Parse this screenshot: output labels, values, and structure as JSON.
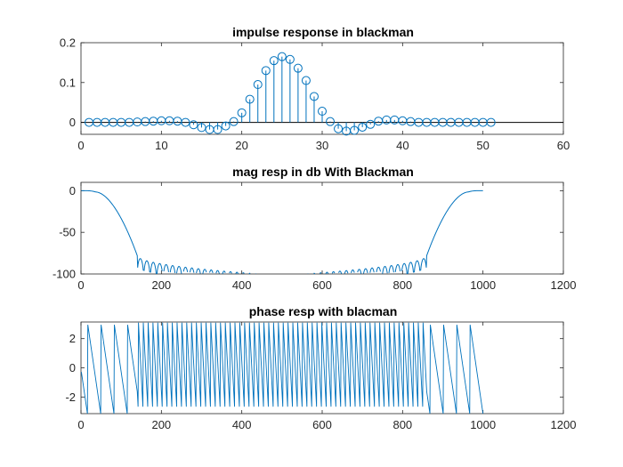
{
  "chart_data": [
    {
      "type": "stem",
      "title": "impulse response in blackman",
      "xlim": [
        0,
        60
      ],
      "ylim": [
        -0.03,
        0.2
      ],
      "xticks": [
        0,
        10,
        20,
        30,
        40,
        50,
        60
      ],
      "yticks": [
        0,
        0.1,
        0.2
      ],
      "xtick_labels": [
        "0",
        "10",
        "20",
        "30",
        "40",
        "50",
        "60"
      ],
      "ytick_labels": [
        "0",
        "0.1",
        "0.2"
      ],
      "baseline": 0,
      "x": [
        1,
        2,
        3,
        4,
        5,
        6,
        7,
        8,
        9,
        10,
        11,
        12,
        13,
        14,
        15,
        16,
        17,
        18,
        19,
        20,
        21,
        22,
        23,
        24,
        25,
        26,
        27,
        28,
        29,
        30,
        31,
        32,
        33,
        34,
        35,
        36,
        37,
        38,
        39,
        40,
        41,
        42,
        43,
        44,
        45,
        46,
        47,
        48,
        49,
        50,
        51
      ],
      "values": [
        0,
        0,
        0,
        0,
        0,
        0,
        0.001,
        0.002,
        0.003,
        0.004,
        0.004,
        0.003,
        0,
        -0.006,
        -0.013,
        -0.018,
        -0.018,
        -0.009,
        0.002,
        0.024,
        0.058,
        0.095,
        0.13,
        0.155,
        0.165,
        0.158,
        0.136,
        0.105,
        0.065,
        0.028,
        0.002,
        -0.016,
        -0.022,
        -0.02,
        -0.012,
        -0.005,
        0.003,
        0.006,
        0.006,
        0.004,
        0.002,
        0,
        0,
        0,
        0,
        0,
        0,
        0,
        0,
        0,
        0
      ],
      "color": "#0072BD"
    },
    {
      "type": "line",
      "title": "mag resp in db With Blackman",
      "xlim": [
        0,
        1200
      ],
      "ylim": [
        -100,
        10
      ],
      "xticks": [
        0,
        200,
        400,
        600,
        800,
        1000,
        1200
      ],
      "yticks": [
        -100,
        -50,
        0
      ],
      "xtick_labels": [
        "0",
        "200",
        "400",
        "600",
        "800",
        "1000",
        "1200"
      ],
      "ytick_labels": [
        "-100",
        "-50",
        "0"
      ],
      "curve": {
        "passband_edge": 36,
        "transition_end": 140,
        "stopband_start_db": -78,
        "stopband_end_db": -102,
        "lobe_spacing": 16,
        "n_points": 1000,
        "clip_floor": -100
      },
      "color": "#0072BD"
    },
    {
      "type": "line",
      "title": "phase resp with blacman",
      "xlim": [
        0,
        1200
      ],
      "ylim": [
        -3.14,
        3.14
      ],
      "xticks": [
        0,
        200,
        400,
        600,
        800,
        1000,
        1200
      ],
      "yticks": [
        -2,
        0,
        2
      ],
      "xtick_labels": [
        "0",
        "200",
        "400",
        "600",
        "800",
        "1000",
        "1200"
      ],
      "ytick_labels": [
        "-2",
        "0",
        "2"
      ],
      "curve": {
        "slow_wrap_period": 33,
        "fast_wrap_period": 12,
        "fast_region": [
          140,
          860
        ],
        "n_points": 1000
      },
      "color": "#0072BD"
    }
  ]
}
